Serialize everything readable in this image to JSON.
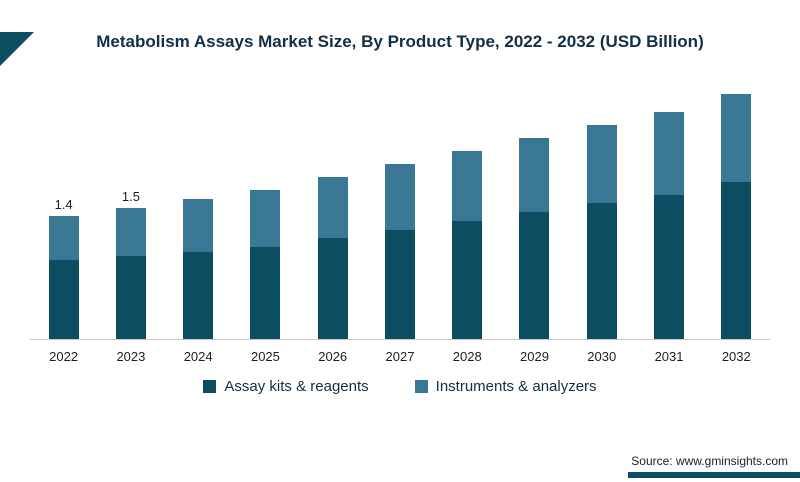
{
  "title": "Metabolism Assays Market Size, By Product Type, 2022 - 2032 (USD Billion)",
  "source": {
    "prefix": "Source:",
    "text": "www.gminsights.com"
  },
  "colors": {
    "dark_teal": "#0d4d61",
    "steel_blue": "#3a7795",
    "title_navy": "#132f45"
  },
  "chart_data": {
    "type": "bar",
    "stacked": true,
    "title": "Metabolism Assays Market Size, By Product Type, 2022 - 2032 (USD Billion)",
    "categories": [
      "2022",
      "2023",
      "2024",
      "2025",
      "2026",
      "2027",
      "2028",
      "2029",
      "2030",
      "2031",
      "2032"
    ],
    "series": [
      {
        "name": "Assay kits & reagents",
        "color": "#0d4d61",
        "values": [
          0.9,
          0.95,
          1.0,
          1.05,
          1.15,
          1.25,
          1.35,
          1.45,
          1.55,
          1.65,
          1.8
        ]
      },
      {
        "name": "Instruments & analyzers",
        "color": "#3a7795",
        "values": [
          0.5,
          0.55,
          0.6,
          0.65,
          0.7,
          0.75,
          0.8,
          0.85,
          0.9,
          0.95,
          1.0
        ]
      }
    ],
    "totals_labels": {
      "2022": "1.4",
      "2023": "1.5"
    },
    "xlabel": "",
    "ylabel": "",
    "ylim": [
      0,
      3.2
    ],
    "grid": false,
    "legend_position": "bottom"
  }
}
